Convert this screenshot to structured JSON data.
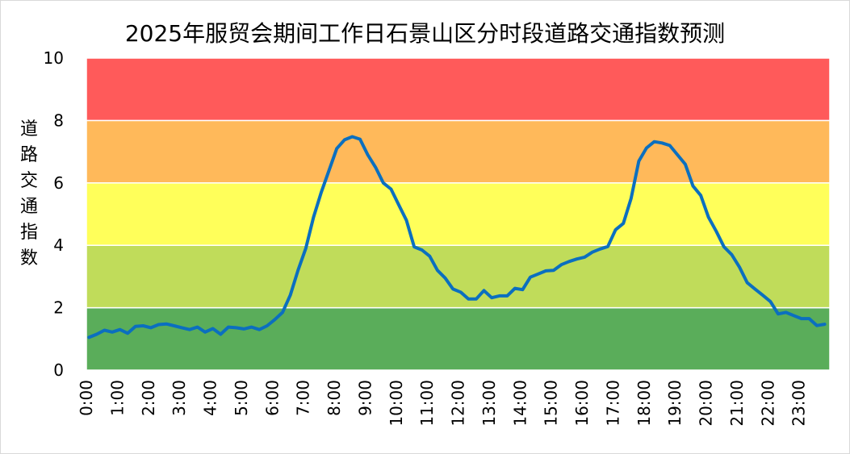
{
  "chart_data": {
    "type": "line",
    "title": "2025年服贸会期间工作日石景山区分时段道路交通指数预测",
    "ylabel": "道路交通指数",
    "xlabel": "",
    "ylim": [
      0,
      10
    ],
    "y_ticks": [
      "0",
      "2",
      "4",
      "6",
      "8",
      "10"
    ],
    "x_ticks": [
      "0:00",
      "1:00",
      "2:00",
      "3:00",
      "4:00",
      "5:00",
      "6:00",
      "7:00",
      "8:00",
      "9:00",
      "10:00",
      "11:00",
      "12:00",
      "13:00",
      "14:00",
      "15:00",
      "16:00",
      "17:00",
      "18:00",
      "19:00",
      "20:00",
      "21:00",
      "22:00",
      "23:00"
    ],
    "bands": [
      {
        "from": 0,
        "to": 2,
        "color": "#5aad5a"
      },
      {
        "from": 2,
        "to": 4,
        "color": "#c0dc5a"
      },
      {
        "from": 4,
        "to": 6,
        "color": "#ffff5a"
      },
      {
        "from": 6,
        "to": 8,
        "color": "#ffb95a"
      },
      {
        "from": 8,
        "to": 10,
        "color": "#ff5a5a"
      }
    ],
    "line_color": "#0b6fbf",
    "grid": false,
    "legend": "none",
    "series": [
      {
        "interval_minutes": 15,
        "values": [
          1.05,
          1.15,
          1.28,
          1.22,
          1.3,
          1.18,
          1.4,
          1.42,
          1.36,
          1.46,
          1.48,
          1.42,
          1.36,
          1.3,
          1.38,
          1.22,
          1.33,
          1.15,
          1.38,
          1.36,
          1.32,
          1.38,
          1.3,
          1.42,
          1.62,
          1.85,
          2.4,
          3.2,
          3.9,
          4.9,
          5.7,
          6.4,
          7.1,
          7.38,
          7.48,
          7.4,
          6.9,
          6.5,
          6.0,
          5.8,
          5.3,
          4.8,
          3.95,
          3.85,
          3.65,
          3.2,
          2.95,
          2.6,
          2.5,
          2.28,
          2.28,
          2.55,
          2.32,
          2.38,
          2.38,
          2.62,
          2.58,
          2.98,
          3.08,
          3.18,
          3.2,
          3.38,
          3.48,
          3.56,
          3.62,
          3.78,
          3.88,
          3.96,
          4.5,
          4.7,
          5.5,
          6.7,
          7.12,
          7.32,
          7.28,
          7.2,
          6.9,
          6.6,
          5.9,
          5.6,
          4.9,
          4.45,
          3.95,
          3.7,
          3.3,
          2.8,
          2.6,
          2.4,
          2.2,
          1.8,
          1.85,
          1.75,
          1.65,
          1.65,
          1.43,
          1.47
        ]
      }
    ]
  }
}
